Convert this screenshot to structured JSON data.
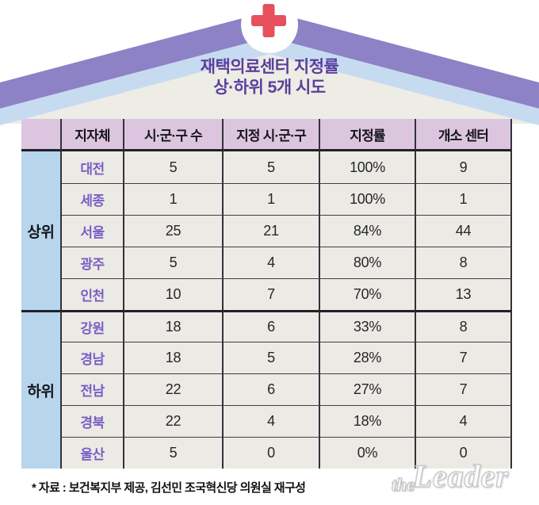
{
  "colors": {
    "roof_purple": "#8d82c5",
    "roof_blue": "#c7dbf0",
    "roof_cream": "#edece5",
    "cross_red": "#e6505c",
    "title_purple": "#5b3f9e",
    "header_bg": "#dcc6df",
    "group_bg": "#b7d5ec",
    "cell_bg": "#eceae4",
    "city_purple": "#7a5ec6"
  },
  "header": {
    "title_line1": "재택의료센터 지정률",
    "title_line2": "상·하위 5개 시도"
  },
  "chart_data": {
    "type": "table",
    "title": "재택의료센터 지정률 상·하위 5개 시도",
    "columns": [
      "지자체",
      "시·군·구 수",
      "지정 시·군·구",
      "지정률",
      "개소 센터"
    ],
    "groups": [
      {
        "label": "상위",
        "rows": [
          [
            "대전",
            "5",
            "5",
            "100%",
            "9"
          ],
          [
            "세종",
            "1",
            "1",
            "100%",
            "1"
          ],
          [
            "서울",
            "25",
            "21",
            "84%",
            "44"
          ],
          [
            "광주",
            "5",
            "4",
            "80%",
            "8"
          ],
          [
            "인천",
            "10",
            "7",
            "70%",
            "13"
          ]
        ]
      },
      {
        "label": "하위",
        "rows": [
          [
            "강원",
            "18",
            "6",
            "33%",
            "8"
          ],
          [
            "경남",
            "18",
            "5",
            "28%",
            "7"
          ],
          [
            "전남",
            "22",
            "6",
            "27%",
            "7"
          ],
          [
            "경북",
            "22",
            "4",
            "18%",
            "4"
          ],
          [
            "울산",
            "5",
            "0",
            "0%",
            "0"
          ]
        ]
      }
    ],
    "source_note": "* 자료 : 보건복지부 제공, 김선민 조국혁신당 의원실 재구성"
  },
  "watermark": {
    "the": "the",
    "leader": "Leader"
  }
}
